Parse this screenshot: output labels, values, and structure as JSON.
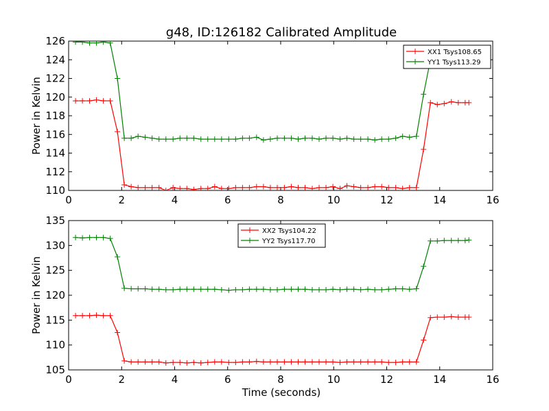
{
  "figure": {
    "title": "g48, ID:126182 Calibrated Amplitude",
    "xlabel": "Time (seconds)"
  },
  "chart_data": [
    {
      "type": "line",
      "title": "g48, ID:126182 Calibrated Amplitude",
      "xlabel": "",
      "ylabel": "Power in Kelvin",
      "xlim": [
        0,
        16
      ],
      "ylim": [
        110,
        126
      ],
      "xticks": [
        "0",
        "2",
        "4",
        "6",
        "8",
        "10",
        "12",
        "14",
        "16"
      ],
      "yticks": [
        "110",
        "112",
        "114",
        "116",
        "118",
        "120",
        "122",
        "124",
        "126"
      ],
      "legend_position": "top-right",
      "x": [
        0.26,
        0.52,
        0.79,
        1.05,
        1.31,
        1.57,
        1.84,
        2.1,
        2.36,
        2.62,
        2.89,
        3.15,
        3.41,
        3.67,
        3.94,
        4.2,
        4.46,
        4.72,
        4.99,
        5.25,
        5.51,
        5.77,
        6.04,
        6.3,
        6.56,
        6.82,
        7.09,
        7.35,
        7.61,
        7.87,
        8.14,
        8.4,
        8.66,
        8.92,
        9.19,
        9.45,
        9.71,
        9.97,
        10.24,
        10.5,
        10.76,
        11.02,
        11.29,
        11.55,
        11.81,
        12.07,
        12.34,
        12.6,
        12.86,
        13.12,
        13.39,
        13.65,
        13.91,
        14.17,
        14.44,
        14.7,
        14.96,
        15.1
      ],
      "series": [
        {
          "name": "XX1 Tsys108.65",
          "color": "#ff0000",
          "values": [
            119.6,
            119.6,
            119.6,
            119.7,
            119.6,
            119.6,
            116.3,
            110.6,
            110.4,
            110.3,
            110.3,
            110.3,
            110.3,
            110.0,
            110.3,
            110.2,
            110.2,
            110.1,
            110.2,
            110.2,
            110.4,
            110.2,
            110.2,
            110.3,
            110.3,
            110.3,
            110.4,
            110.4,
            110.3,
            110.3,
            110.3,
            110.4,
            110.3,
            110.3,
            110.2,
            110.3,
            110.3,
            110.4,
            110.2,
            110.5,
            110.4,
            110.3,
            110.3,
            110.4,
            110.4,
            110.3,
            110.3,
            110.2,
            110.3,
            110.3,
            114.4,
            119.4,
            119.2,
            119.3,
            119.5,
            119.4,
            119.4,
            119.4
          ]
        },
        {
          "name": "YY1 Tsys113.29",
          "color": "#008000",
          "values": [
            125.9,
            125.9,
            125.8,
            125.8,
            125.9,
            125.8,
            122.0,
            115.6,
            115.6,
            115.8,
            115.7,
            115.6,
            115.5,
            115.5,
            115.5,
            115.6,
            115.6,
            115.6,
            115.5,
            115.5,
            115.5,
            115.5,
            115.5,
            115.5,
            115.6,
            115.6,
            115.7,
            115.4,
            115.5,
            115.6,
            115.6,
            115.6,
            115.5,
            115.6,
            115.6,
            115.5,
            115.6,
            115.6,
            115.5,
            115.6,
            115.5,
            115.5,
            115.5,
            115.4,
            115.5,
            115.5,
            115.6,
            115.8,
            115.7,
            115.8,
            120.3,
            124.0,
            124.4,
            124.6,
            124.6,
            124.7,
            124.8,
            124.8
          ]
        }
      ]
    },
    {
      "type": "line",
      "title": "",
      "xlabel": "Time (seconds)",
      "ylabel": "Power in Kelvin",
      "xlim": [
        0,
        16
      ],
      "ylim": [
        105,
        135
      ],
      "xticks": [
        "0",
        "2",
        "4",
        "6",
        "8",
        "10",
        "12",
        "14",
        "16"
      ],
      "yticks": [
        "105",
        "110",
        "115",
        "120",
        "125",
        "130",
        "135"
      ],
      "legend_position": "top-center",
      "x": [
        0.26,
        0.52,
        0.79,
        1.05,
        1.31,
        1.57,
        1.84,
        2.1,
        2.36,
        2.62,
        2.89,
        3.15,
        3.41,
        3.67,
        3.94,
        4.2,
        4.46,
        4.72,
        4.99,
        5.25,
        5.51,
        5.77,
        6.04,
        6.3,
        6.56,
        6.82,
        7.09,
        7.35,
        7.61,
        7.87,
        8.14,
        8.4,
        8.66,
        8.92,
        9.19,
        9.45,
        9.71,
        9.97,
        10.24,
        10.5,
        10.76,
        11.02,
        11.29,
        11.55,
        11.81,
        12.07,
        12.34,
        12.6,
        12.86,
        13.12,
        13.39,
        13.65,
        13.91,
        14.17,
        14.44,
        14.7,
        14.96,
        15.1
      ],
      "series": [
        {
          "name": "XX2 Tsys104.22",
          "color": "#ff0000",
          "values": [
            115.9,
            115.9,
            115.9,
            116.0,
            115.9,
            115.9,
            112.5,
            106.8,
            106.6,
            106.6,
            106.6,
            106.6,
            106.6,
            106.4,
            106.5,
            106.5,
            106.4,
            106.5,
            106.4,
            106.5,
            106.6,
            106.6,
            106.5,
            106.5,
            106.6,
            106.6,
            106.7,
            106.6,
            106.6,
            106.6,
            106.6,
            106.6,
            106.6,
            106.6,
            106.6,
            106.6,
            106.6,
            106.6,
            106.5,
            106.6,
            106.6,
            106.6,
            106.6,
            106.6,
            106.6,
            106.5,
            106.5,
            106.6,
            106.6,
            106.6,
            111.0,
            115.5,
            115.6,
            115.6,
            115.7,
            115.6,
            115.6,
            115.6
          ]
        },
        {
          "name": "YY2 Tsys117.70",
          "color": "#008000",
          "values": [
            131.6,
            131.5,
            131.6,
            131.6,
            131.6,
            131.4,
            127.7,
            121.4,
            121.3,
            121.3,
            121.3,
            121.2,
            121.2,
            121.1,
            121.1,
            121.2,
            121.2,
            121.2,
            121.2,
            121.2,
            121.2,
            121.1,
            121.0,
            121.1,
            121.1,
            121.2,
            121.2,
            121.2,
            121.1,
            121.1,
            121.2,
            121.2,
            121.2,
            121.2,
            121.1,
            121.1,
            121.1,
            121.2,
            121.1,
            121.2,
            121.2,
            121.1,
            121.2,
            121.1,
            121.1,
            121.2,
            121.3,
            121.3,
            121.2,
            121.3,
            125.8,
            130.9,
            130.9,
            131.0,
            131.0,
            131.0,
            131.0,
            131.1
          ]
        }
      ]
    }
  ]
}
